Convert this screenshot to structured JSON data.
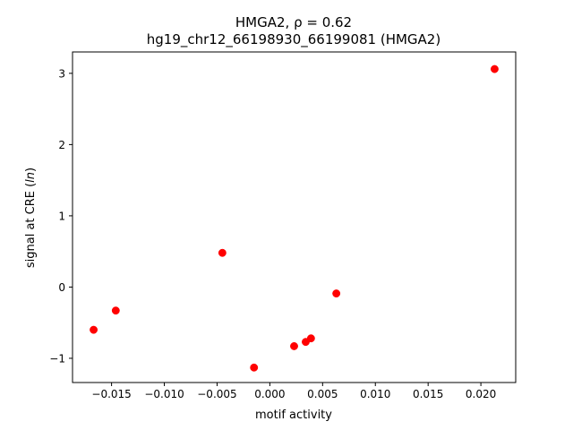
{
  "chart_data": {
    "type": "scatter",
    "title": "HMGA2, ρ = 0.62",
    "subtitle": "hg19_chr12_66198930_66199081 (HMGA2)",
    "xlabel": "motif activity",
    "ylabel": "signal at CRE (ln)",
    "xlim": [
      -0.0187,
      0.0233
    ],
    "ylim": [
      -1.34,
      3.3
    ],
    "xticks": [
      -0.015,
      -0.01,
      -0.005,
      0.0,
      0.005,
      0.01,
      0.015,
      0.02
    ],
    "xtick_labels": [
      "−0.015",
      "−0.010",
      "−0.005",
      "0.000",
      "0.005",
      "0.010",
      "0.015",
      "0.020"
    ],
    "yticks": [
      -1,
      0,
      1,
      2,
      3
    ],
    "ytick_labels": [
      "−1",
      "0",
      "1",
      "2",
      "3"
    ],
    "grid": false,
    "marker_color": "#ff0000",
    "series": [
      {
        "x": [
          -0.0167,
          -0.0146,
          -0.0045,
          -0.0015,
          0.0023,
          0.0034,
          0.0039,
          0.0063,
          0.0213
        ],
        "y": [
          -0.6,
          -0.33,
          0.48,
          -1.13,
          -0.83,
          -0.77,
          -0.72,
          -0.09,
          3.06
        ]
      }
    ]
  }
}
